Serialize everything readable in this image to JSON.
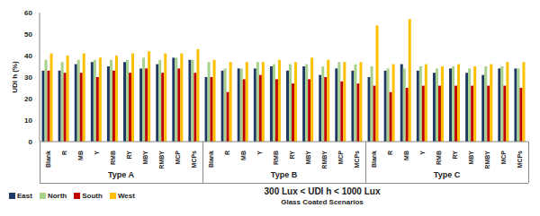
{
  "chart_data": {
    "type": "bar",
    "y_label": "UDI h (%)",
    "x_label": "300 Lux < UDI h < 1000 Lux",
    "subtitle": "Glass Coated Scenarios",
    "groups": [
      "Type A",
      "Type B",
      "Type C"
    ],
    "categories": [
      "Blank",
      "R",
      "MB",
      "Y",
      "RMB",
      "RY",
      "MBY",
      "RMBY",
      "MCP",
      "MCPs",
      "Blank",
      "R",
      "MB",
      "Y",
      "RMB",
      "RY",
      "MBY",
      "RMBY",
      "MCP",
      "MCPs",
      "Blank",
      "R",
      "MB",
      "Y",
      "RMB",
      "RY",
      "MBY",
      "RMBY",
      "MCP",
      "MCPs"
    ],
    "series": [
      {
        "name": "East",
        "color": "#1f3864",
        "values": [
          33,
          33,
          36,
          37,
          35,
          37,
          34,
          36,
          39,
          38,
          30,
          33,
          34,
          34,
          35,
          33,
          35,
          31,
          34,
          33,
          30,
          33,
          36,
          33,
          32,
          34,
          32,
          31,
          34,
          34
        ]
      },
      {
        "name": "North",
        "color": "#a9d18e",
        "values": [
          38,
          37,
          38,
          38,
          38,
          38,
          39,
          38,
          39,
          38,
          37,
          34,
          34,
          37,
          36,
          36,
          36,
          35,
          37,
          36,
          35,
          34,
          34,
          35,
          34,
          35,
          34,
          35,
          35,
          34
        ]
      },
      {
        "name": "South",
        "color": "#c00000",
        "values": [
          33,
          32,
          32,
          30,
          33,
          32,
          34,
          32,
          34,
          32,
          30,
          23,
          29,
          31,
          29,
          27,
          29,
          30,
          28,
          27,
          26,
          23,
          25,
          26,
          26,
          26,
          26,
          26,
          26,
          25
        ]
      },
      {
        "name": "West",
        "color": "#ffc000",
        "values": [
          41,
          40,
          41,
          39,
          40,
          41,
          42,
          41,
          41,
          43,
          38,
          37,
          37,
          37,
          38,
          37,
          39,
          38,
          37,
          37,
          54,
          36,
          57,
          36,
          35,
          36,
          35,
          36,
          37,
          37
        ]
      }
    ],
    "ylim": [
      0,
      60
    ],
    "yticks": [
      0,
      10,
      20,
      30,
      40,
      50,
      60
    ],
    "grid": false,
    "legend": "bottom-left"
  }
}
